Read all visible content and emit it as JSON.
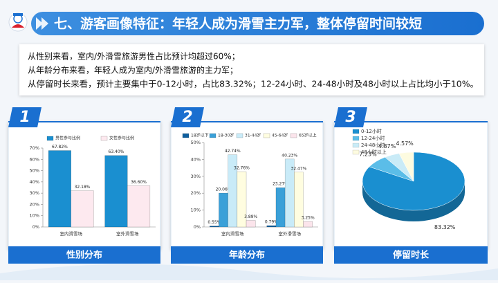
{
  "header": {
    "title": "七、游客画像特征：年轻人成为滑雪主力军，整体停留时间较短"
  },
  "summary": {
    "lines": [
      "从性别来看，室内/外滑雪旅游男性占比预计均超过60%；",
      "从年龄分布来看，年轻人成为室内/外滑雪旅游的主力军；",
      "从停留时长来看，预计主要集中于0-12小时，占比83.32%；12-24小时、24-48小时及48小时以上占比均小于10%。"
    ]
  },
  "panels": [
    {
      "number": "1",
      "caption": "性别分布"
    },
    {
      "number": "2",
      "caption": "年龄分布"
    },
    {
      "number": "3",
      "caption": "停留时长"
    }
  ],
  "chart_data": [
    {
      "type": "bar",
      "categories": [
        "室内滑雪场",
        "室外滑雪场"
      ],
      "series": [
        {
          "name": "男性参与比例",
          "color": "#1a8fd0",
          "values": [
            67.82,
            63.4
          ],
          "value_labels": [
            "67.82%",
            "63.40%"
          ]
        },
        {
          "name": "女性参与比例",
          "color": "#fde9ef",
          "values": [
            32.18,
            36.6
          ],
          "value_labels": [
            "32.18%",
            "36.60%"
          ]
        }
      ],
      "ylim": [
        0,
        70
      ],
      "yticks": [
        {
          "value": 0,
          "label": "0%"
        },
        {
          "value": 10,
          "label": "10%"
        },
        {
          "value": 20,
          "label": "20%"
        },
        {
          "value": 30,
          "label": "30%"
        },
        {
          "value": 40,
          "label": "40%"
        },
        {
          "value": 50,
          "label": "50%"
        },
        {
          "value": 60,
          "label": "60%"
        },
        {
          "value": 70,
          "label": "70%"
        }
      ],
      "grid": false
    },
    {
      "type": "bar",
      "categories": [
        "室内滑雪场",
        "室外滑雪场"
      ],
      "series": [
        {
          "name": "18岁以下",
          "color": "#0f5f9e",
          "values": [
            0.55,
            0.79
          ],
          "value_labels": [
            "0.55%",
            "0.79%"
          ]
        },
        {
          "name": "18-30岁",
          "color": "#3aa0d8",
          "values": [
            20.06,
            23.27
          ],
          "value_labels": [
            "20.06%",
            "23.27%"
          ]
        },
        {
          "name": "31-44岁",
          "color": "#c9ebf8",
          "values": [
            42.74,
            40.23
          ],
          "value_labels": [
            "42.74%",
            "40.23%"
          ]
        },
        {
          "name": "45-64岁",
          "color": "#fffde0",
          "values": [
            32.76,
            32.47
          ],
          "value_labels": [
            "32.76%",
            "32.47%"
          ]
        },
        {
          "name": "65岁以上",
          "color": "#fbe4eb",
          "values": [
            3.89,
            3.25
          ],
          "value_labels": [
            "3.89%",
            "3.25%"
          ]
        }
      ],
      "ylim": [
        0,
        50
      ],
      "yticks": [
        {
          "value": 0,
          "label": "0%"
        },
        {
          "value": 10,
          "label": "10%"
        },
        {
          "value": 20,
          "label": "20%"
        },
        {
          "value": 30,
          "label": "30%"
        },
        {
          "value": 40,
          "label": "40%"
        },
        {
          "value": 50,
          "label": "50%"
        }
      ],
      "grid": false
    },
    {
      "type": "pie",
      "categories": [
        "0-12小时",
        "12-24小时",
        "24-48小时",
        "48小时以上"
      ],
      "values": [
        83.32,
        7.23,
        4.87,
        4.57
      ],
      "value_labels": [
        "83.32%",
        "7.23%",
        "4.87%",
        "4.57%"
      ],
      "colors": [
        "#1a8fd0",
        "#5bbde8",
        "#c9ebf7",
        "#fdfbe0"
      ]
    }
  ]
}
